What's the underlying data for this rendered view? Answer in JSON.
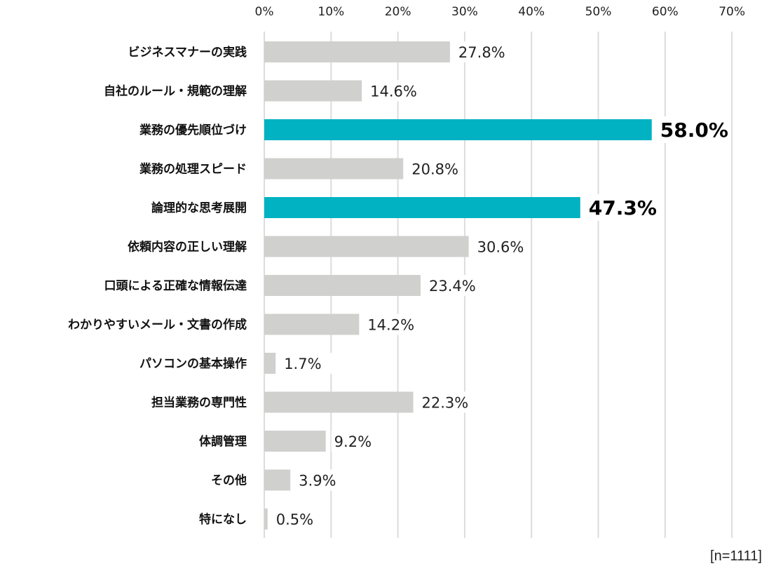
{
  "chart_data": {
    "type": "bar",
    "orientation": "horizontal",
    "title": "",
    "xlabel": "",
    "ylabel": "",
    "xlim": [
      0,
      70
    ],
    "ticks": [
      "0%",
      "10%",
      "20%",
      "30%",
      "40%",
      "50%",
      "60%",
      "70%"
    ],
    "tick_values": [
      0,
      10,
      20,
      30,
      40,
      50,
      60,
      70
    ],
    "grid": true,
    "categories": [
      "ビジネスマナーの実践",
      "自社のルール・規範の理解",
      "業務の優先順位づけ",
      "業務の処理スピード",
      "論理的な思考展開",
      "依頼内容の正しい理解",
      "口頭による正確な情報伝達",
      "わかりやすいメール・文書の作成",
      "パソコンの基本操作",
      "担当業務の専門性",
      "体調管理",
      "その他",
      "特になし"
    ],
    "values": [
      27.8,
      14.6,
      58.0,
      20.8,
      47.3,
      30.6,
      23.4,
      14.2,
      1.7,
      22.3,
      9.2,
      3.9,
      0.5
    ],
    "value_labels": [
      "27.8%",
      "14.6%",
      "58.0%",
      "20.8%",
      "47.3%",
      "30.6%",
      "23.4%",
      "14.2%",
      "1.7%",
      "22.3%",
      "9.2%",
      "3.9%",
      "0.5%"
    ],
    "highlighted": [
      false,
      false,
      true,
      false,
      true,
      false,
      false,
      false,
      false,
      false,
      false,
      false,
      false
    ],
    "colors": {
      "default": "#d0d0ce",
      "highlight": "#00b2c2",
      "grid": "#dcdcdc"
    },
    "note": "[n=1111]"
  }
}
